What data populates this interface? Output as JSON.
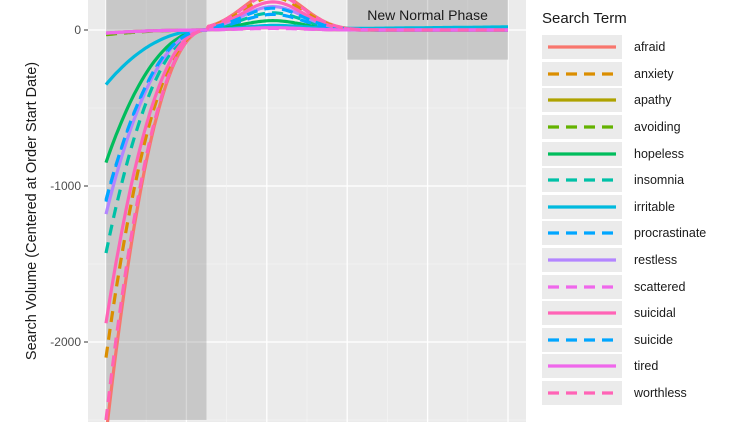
{
  "chart_data": {
    "type": "line",
    "title": "",
    "xlabel": "",
    "ylabel": "Search Volume (Centered at Order Start Date)",
    "yticks": [
      0,
      -1000,
      -2000
    ],
    "ylim": [
      -2500,
      200
    ],
    "xlim": [
      0,
      10
    ],
    "grid": true,
    "legend_title": "Search Term",
    "legend_position": "right",
    "shaded_regions": [
      {
        "x": [
          0,
          2.5
        ],
        "y": [
          -2500,
          200
        ]
      },
      {
        "x": [
          6,
          10
        ],
        "y": [
          -190,
          200
        ],
        "label": "New Normal Phase"
      }
    ],
    "series": [
      {
        "name": "afraid",
        "color": "#F8766D",
        "dash": "solid",
        "y0": -2600,
        "peak": 240,
        "end": 0
      },
      {
        "name": "anxiety",
        "color": "#DB8E00",
        "dash": "dashed",
        "y0": -2100,
        "peak": 210,
        "end": 0
      },
      {
        "name": "apathy",
        "color": "#AEA200",
        "dash": "solid",
        "y0": -20,
        "peak": 15,
        "end": 0
      },
      {
        "name": "avoiding",
        "color": "#64B200",
        "dash": "dashed",
        "y0": -30,
        "peak": 20,
        "end": 0
      },
      {
        "name": "hopeless",
        "color": "#00BD5C",
        "dash": "solid",
        "y0": -850,
        "peak": 60,
        "end": 0
      },
      {
        "name": "insomnia",
        "color": "#00C1A7",
        "dash": "dashed",
        "y0": -1430,
        "peak": 110,
        "end": 0
      },
      {
        "name": "irritable",
        "color": "#00BADE",
        "dash": "solid",
        "y0": -350,
        "peak": 25,
        "end": 20
      },
      {
        "name": "procrastinate",
        "color": "#00A6FF",
        "dash": "dashed",
        "y0": -1100,
        "peak": 100,
        "end": 0
      },
      {
        "name": "restless",
        "color": "#B385FF",
        "dash": "solid",
        "y0": -1180,
        "peak": 150,
        "end": 0
      },
      {
        "name": "scattered",
        "color": "#EF67EB",
        "dash": "dashed",
        "y0": -20,
        "peak": 10,
        "end": 0
      },
      {
        "name": "suicidal",
        "color": "#FF63B6",
        "dash": "solid",
        "y0": -1880,
        "peak": 180,
        "end": 0
      },
      {
        "name": "suicide",
        "color": "#00A6FF",
        "dash": "dashed",
        "y0": -1090,
        "peak": 140,
        "end": 0
      },
      {
        "name": "tired",
        "color": "#EF67EB",
        "dash": "solid",
        "y0": -20,
        "peak": 15,
        "end": 0
      },
      {
        "name": "worthless",
        "color": "#FF63B6",
        "dash": "dashed",
        "y0": -2500,
        "peak": 230,
        "end": 0
      }
    ]
  }
}
